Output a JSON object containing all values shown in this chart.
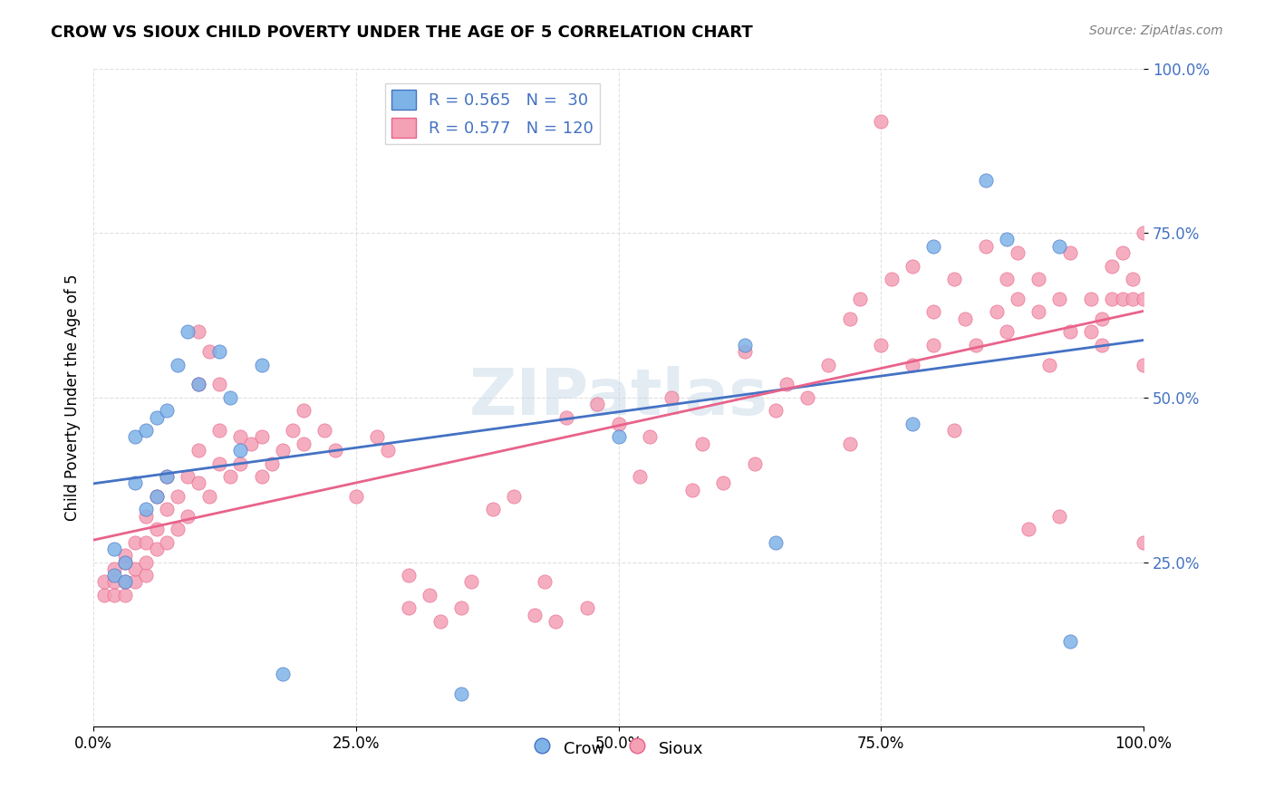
{
  "title": "CROW VS SIOUX CHILD POVERTY UNDER THE AGE OF 5 CORRELATION CHART",
  "source": "Source: ZipAtlas.com",
  "ylabel": "Child Poverty Under the Age of 5",
  "xlabel": "",
  "xlim": [
    0,
    1
  ],
  "ylim": [
    0,
    1
  ],
  "xticks": [
    0.0,
    0.25,
    0.5,
    0.75,
    1.0
  ],
  "xticklabels": [
    "0.0%",
    "25.0%",
    "50.0%",
    "75.0%",
    "100.0%"
  ],
  "yticks": [
    0.25,
    0.5,
    0.75,
    1.0
  ],
  "yticklabels": [
    "25.0%",
    "50.0%",
    "75.0%",
    "100.0%"
  ],
  "crow_color": "#7EB3E8",
  "sioux_color": "#F4A0B5",
  "crow_line_color": "#4472C4",
  "sioux_line_color": "#E8638A",
  "crow_R": 0.565,
  "crow_N": 30,
  "sioux_R": 0.577,
  "sioux_N": 120,
  "watermark": "ZIPatlas",
  "watermark_color": "#C8D8E8",
  "legend_R_color": "#4472C4",
  "legend_N_color": "#4472C4",
  "crow_scatter": [
    [
      0.02,
      0.27
    ],
    [
      0.02,
      0.23
    ],
    [
      0.03,
      0.25
    ],
    [
      0.03,
      0.22
    ],
    [
      0.04,
      0.37
    ],
    [
      0.04,
      0.44
    ],
    [
      0.05,
      0.33
    ],
    [
      0.05,
      0.45
    ],
    [
      0.06,
      0.47
    ],
    [
      0.06,
      0.35
    ],
    [
      0.07,
      0.48
    ],
    [
      0.07,
      0.38
    ],
    [
      0.08,
      0.55
    ],
    [
      0.09,
      0.6
    ],
    [
      0.1,
      0.52
    ],
    [
      0.12,
      0.57
    ],
    [
      0.13,
      0.5
    ],
    [
      0.14,
      0.42
    ],
    [
      0.16,
      0.55
    ],
    [
      0.18,
      0.08
    ],
    [
      0.35,
      0.05
    ],
    [
      0.5,
      0.44
    ],
    [
      0.62,
      0.58
    ],
    [
      0.65,
      0.28
    ],
    [
      0.78,
      0.46
    ],
    [
      0.8,
      0.73
    ],
    [
      0.85,
      0.83
    ],
    [
      0.87,
      0.74
    ],
    [
      0.92,
      0.73
    ],
    [
      0.93,
      0.13
    ]
  ],
  "sioux_scatter": [
    [
      0.01,
      0.2
    ],
    [
      0.01,
      0.22
    ],
    [
      0.02,
      0.2
    ],
    [
      0.02,
      0.22
    ],
    [
      0.02,
      0.24
    ],
    [
      0.03,
      0.2
    ],
    [
      0.03,
      0.22
    ],
    [
      0.03,
      0.25
    ],
    [
      0.03,
      0.26
    ],
    [
      0.04,
      0.22
    ],
    [
      0.04,
      0.24
    ],
    [
      0.04,
      0.28
    ],
    [
      0.05,
      0.23
    ],
    [
      0.05,
      0.25
    ],
    [
      0.05,
      0.28
    ],
    [
      0.05,
      0.32
    ],
    [
      0.06,
      0.27
    ],
    [
      0.06,
      0.3
    ],
    [
      0.06,
      0.35
    ],
    [
      0.07,
      0.28
    ],
    [
      0.07,
      0.33
    ],
    [
      0.07,
      0.38
    ],
    [
      0.08,
      0.3
    ],
    [
      0.08,
      0.35
    ],
    [
      0.09,
      0.32
    ],
    [
      0.09,
      0.38
    ],
    [
      0.1,
      0.37
    ],
    [
      0.1,
      0.42
    ],
    [
      0.11,
      0.35
    ],
    [
      0.12,
      0.4
    ],
    [
      0.12,
      0.45
    ],
    [
      0.13,
      0.38
    ],
    [
      0.14,
      0.4
    ],
    [
      0.14,
      0.44
    ],
    [
      0.15,
      0.43
    ],
    [
      0.16,
      0.38
    ],
    [
      0.16,
      0.44
    ],
    [
      0.17,
      0.4
    ],
    [
      0.18,
      0.42
    ],
    [
      0.19,
      0.45
    ],
    [
      0.2,
      0.43
    ],
    [
      0.2,
      0.48
    ],
    [
      0.22,
      0.45
    ],
    [
      0.23,
      0.42
    ],
    [
      0.25,
      0.35
    ],
    [
      0.27,
      0.44
    ],
    [
      0.28,
      0.42
    ],
    [
      0.3,
      0.18
    ],
    [
      0.3,
      0.23
    ],
    [
      0.32,
      0.2
    ],
    [
      0.33,
      0.16
    ],
    [
      0.35,
      0.18
    ],
    [
      0.36,
      0.22
    ],
    [
      0.38,
      0.33
    ],
    [
      0.4,
      0.35
    ],
    [
      0.42,
      0.17
    ],
    [
      0.43,
      0.22
    ],
    [
      0.44,
      0.16
    ],
    [
      0.45,
      0.47
    ],
    [
      0.47,
      0.18
    ],
    [
      0.48,
      0.49
    ],
    [
      0.5,
      0.46
    ],
    [
      0.52,
      0.38
    ],
    [
      0.53,
      0.44
    ],
    [
      0.55,
      0.5
    ],
    [
      0.57,
      0.36
    ],
    [
      0.58,
      0.43
    ],
    [
      0.6,
      0.37
    ],
    [
      0.62,
      0.57
    ],
    [
      0.63,
      0.4
    ],
    [
      0.65,
      0.48
    ],
    [
      0.66,
      0.52
    ],
    [
      0.68,
      0.5
    ],
    [
      0.7,
      0.55
    ],
    [
      0.72,
      0.43
    ],
    [
      0.72,
      0.62
    ],
    [
      0.73,
      0.65
    ],
    [
      0.75,
      0.58
    ],
    [
      0.75,
      0.92
    ],
    [
      0.76,
      0.68
    ],
    [
      0.78,
      0.55
    ],
    [
      0.78,
      0.7
    ],
    [
      0.8,
      0.58
    ],
    [
      0.8,
      0.63
    ],
    [
      0.82,
      0.45
    ],
    [
      0.82,
      0.68
    ],
    [
      0.83,
      0.62
    ],
    [
      0.84,
      0.58
    ],
    [
      0.85,
      0.73
    ],
    [
      0.86,
      0.63
    ],
    [
      0.87,
      0.6
    ],
    [
      0.87,
      0.68
    ],
    [
      0.88,
      0.65
    ],
    [
      0.88,
      0.72
    ],
    [
      0.89,
      0.3
    ],
    [
      0.9,
      0.63
    ],
    [
      0.9,
      0.68
    ],
    [
      0.91,
      0.55
    ],
    [
      0.92,
      0.65
    ],
    [
      0.92,
      0.32
    ],
    [
      0.93,
      0.6
    ],
    [
      0.93,
      0.72
    ],
    [
      0.95,
      0.6
    ],
    [
      0.95,
      0.65
    ],
    [
      0.96,
      0.58
    ],
    [
      0.96,
      0.62
    ],
    [
      0.97,
      0.65
    ],
    [
      0.97,
      0.7
    ],
    [
      0.98,
      0.65
    ],
    [
      0.98,
      0.72
    ],
    [
      0.99,
      0.65
    ],
    [
      0.99,
      0.68
    ],
    [
      1.0,
      0.28
    ],
    [
      1.0,
      0.55
    ],
    [
      1.0,
      0.65
    ],
    [
      1.0,
      0.75
    ],
    [
      0.1,
      0.6
    ],
    [
      0.12,
      0.52
    ],
    [
      0.1,
      0.52
    ],
    [
      0.11,
      0.57
    ]
  ],
  "background_color": "#FFFFFF",
  "grid_color": "#E0E0E0"
}
